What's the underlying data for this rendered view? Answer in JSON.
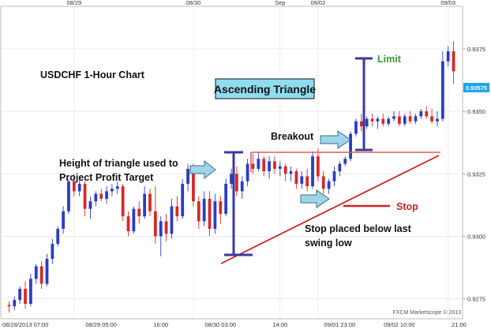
{
  "chart_data": {
    "type": "candlestick",
    "title": "USDCHF 1-Hour Chart",
    "pattern_label": "Ascending Triangle",
    "watermark": "FXCM Marketscope © 2013",
    "current_price_label": "0.93575",
    "y_ticks": [
      "0.9375",
      "0.9350",
      "0.9325",
      "0.9300",
      "0.9275"
    ],
    "y_tick_values": [
      0.9375,
      0.935,
      0.9325,
      0.93,
      0.9275
    ],
    "ylim": [
      0.9267,
      0.9392
    ],
    "top_ticks": [
      {
        "label": "08/29",
        "index": 12
      },
      {
        "label": "08/30",
        "index": 34
      },
      {
        "label": "Sep",
        "index": 50
      },
      {
        "label": "09/02",
        "index": 57
      },
      {
        "label": "09/03",
        "index": 81
      }
    ],
    "bottom_ticks": [
      {
        "label": "08/28/2013 07:00",
        "index": 0
      },
      {
        "label": "08/29 05:00",
        "index": 17
      },
      {
        "label": "16:00",
        "index": 28
      },
      {
        "label": "08/30 03:00",
        "index": 39
      },
      {
        "label": "14:00",
        "index": 50
      },
      {
        "label": "09/01 23:00",
        "index": 61
      },
      {
        "label": "09/02 10:00",
        "index": 72
      },
      {
        "label": "21:00",
        "index": 83
      }
    ],
    "candles": [
      {
        "o": 0.92725,
        "h": 0.9274,
        "l": 0.92695,
        "c": 0.9272
      },
      {
        "o": 0.9272,
        "h": 0.9276,
        "l": 0.92705,
        "c": 0.92745
      },
      {
        "o": 0.92745,
        "h": 0.928,
        "l": 0.9273,
        "c": 0.9279
      },
      {
        "o": 0.9279,
        "h": 0.9282,
        "l": 0.9271,
        "c": 0.9273
      },
      {
        "o": 0.9273,
        "h": 0.9285,
        "l": 0.9272,
        "c": 0.9283
      },
      {
        "o": 0.9283,
        "h": 0.9289,
        "l": 0.9281,
        "c": 0.9288
      },
      {
        "o": 0.9288,
        "h": 0.929,
        "l": 0.9279,
        "c": 0.9281
      },
      {
        "o": 0.9281,
        "h": 0.9293,
        "l": 0.928,
        "c": 0.9291
      },
      {
        "o": 0.9291,
        "h": 0.9299,
        "l": 0.9289,
        "c": 0.9297
      },
      {
        "o": 0.9297,
        "h": 0.9304,
        "l": 0.9296,
        "c": 0.9303
      },
      {
        "o": 0.9303,
        "h": 0.9312,
        "l": 0.9301,
        "c": 0.931
      },
      {
        "o": 0.931,
        "h": 0.9323,
        "l": 0.9309,
        "c": 0.9322
      },
      {
        "o": 0.9322,
        "h": 0.9325,
        "l": 0.9316,
        "c": 0.9318
      },
      {
        "o": 0.9318,
        "h": 0.9323,
        "l": 0.9316,
        "c": 0.9321
      },
      {
        "o": 0.9321,
        "h": 0.9322,
        "l": 0.9308,
        "c": 0.9311
      },
      {
        "o": 0.9311,
        "h": 0.9316,
        "l": 0.9307,
        "c": 0.9314
      },
      {
        "o": 0.9314,
        "h": 0.9318,
        "l": 0.9312,
        "c": 0.9317
      },
      {
        "o": 0.9317,
        "h": 0.9319,
        "l": 0.9314,
        "c": 0.9315
      },
      {
        "o": 0.9315,
        "h": 0.932,
        "l": 0.9313,
        "c": 0.9318
      },
      {
        "o": 0.9318,
        "h": 0.9321,
        "l": 0.9316,
        "c": 0.9319
      },
      {
        "o": 0.9319,
        "h": 0.9322,
        "l": 0.9317,
        "c": 0.932
      },
      {
        "o": 0.932,
        "h": 0.9321,
        "l": 0.9306,
        "c": 0.9308
      },
      {
        "o": 0.9308,
        "h": 0.931,
        "l": 0.93,
        "c": 0.9302
      },
      {
        "o": 0.9302,
        "h": 0.9312,
        "l": 0.9301,
        "c": 0.9311
      },
      {
        "o": 0.9311,
        "h": 0.9314,
        "l": 0.9305,
        "c": 0.9308
      },
      {
        "o": 0.9308,
        "h": 0.932,
        "l": 0.9307,
        "c": 0.9317
      },
      {
        "o": 0.9317,
        "h": 0.9319,
        "l": 0.9308,
        "c": 0.931
      },
      {
        "o": 0.931,
        "h": 0.932,
        "l": 0.9297,
        "c": 0.93
      },
      {
        "o": 0.93,
        "h": 0.9308,
        "l": 0.9292,
        "c": 0.9306
      },
      {
        "o": 0.9306,
        "h": 0.9309,
        "l": 0.9298,
        "c": 0.9301
      },
      {
        "o": 0.9301,
        "h": 0.9315,
        "l": 0.9299,
        "c": 0.9312
      },
      {
        "o": 0.9312,
        "h": 0.9316,
        "l": 0.9306,
        "c": 0.9308
      },
      {
        "o": 0.9308,
        "h": 0.9323,
        "l": 0.9307,
        "c": 0.9321
      },
      {
        "o": 0.9321,
        "h": 0.9329,
        "l": 0.9318,
        "c": 0.9327
      },
      {
        "o": 0.9327,
        "h": 0.9329,
        "l": 0.9312,
        "c": 0.9314
      },
      {
        "o": 0.9314,
        "h": 0.9316,
        "l": 0.9303,
        "c": 0.9306
      },
      {
        "o": 0.9306,
        "h": 0.9318,
        "l": 0.9304,
        "c": 0.9315
      },
      {
        "o": 0.9315,
        "h": 0.9318,
        "l": 0.93,
        "c": 0.9303
      },
      {
        "o": 0.9303,
        "h": 0.9317,
        "l": 0.9301,
        "c": 0.9314
      },
      {
        "o": 0.9314,
        "h": 0.9316,
        "l": 0.9305,
        "c": 0.9309
      },
      {
        "o": 0.9309,
        "h": 0.9323,
        "l": 0.9308,
        "c": 0.9321
      },
      {
        "o": 0.9321,
        "h": 0.9327,
        "l": 0.9319,
        "c": 0.9325
      },
      {
        "o": 0.9325,
        "h": 0.9328,
        "l": 0.9316,
        "c": 0.9318
      },
      {
        "o": 0.9318,
        "h": 0.9324,
        "l": 0.9315,
        "c": 0.9322
      },
      {
        "o": 0.9322,
        "h": 0.9331,
        "l": 0.932,
        "c": 0.9329
      },
      {
        "o": 0.9329,
        "h": 0.9333,
        "l": 0.9325,
        "c": 0.9327
      },
      {
        "o": 0.9327,
        "h": 0.9334,
        "l": 0.9326,
        "c": 0.9331
      },
      {
        "o": 0.9331,
        "h": 0.9332,
        "l": 0.9324,
        "c": 0.9326
      },
      {
        "o": 0.9326,
        "h": 0.9332,
        "l": 0.9323,
        "c": 0.933
      },
      {
        "o": 0.933,
        "h": 0.9332,
        "l": 0.9325,
        "c": 0.9327
      },
      {
        "o": 0.9327,
        "h": 0.933,
        "l": 0.9324,
        "c": 0.9328
      },
      {
        "o": 0.9328,
        "h": 0.9329,
        "l": 0.9322,
        "c": 0.9325
      },
      {
        "o": 0.9325,
        "h": 0.9328,
        "l": 0.9322,
        "c": 0.9326
      },
      {
        "o": 0.9326,
        "h": 0.9327,
        "l": 0.9319,
        "c": 0.9321
      },
      {
        "o": 0.9321,
        "h": 0.9326,
        "l": 0.9319,
        "c": 0.9324
      },
      {
        "o": 0.9324,
        "h": 0.9327,
        "l": 0.9318,
        "c": 0.932
      },
      {
        "o": 0.932,
        "h": 0.9334,
        "l": 0.9319,
        "c": 0.9332
      },
      {
        "o": 0.9332,
        "h": 0.9335,
        "l": 0.9322,
        "c": 0.9324
      },
      {
        "o": 0.9324,
        "h": 0.9326,
        "l": 0.9317,
        "c": 0.9319
      },
      {
        "o": 0.9319,
        "h": 0.9323,
        "l": 0.9317,
        "c": 0.9322
      },
      {
        "o": 0.9322,
        "h": 0.9328,
        "l": 0.932,
        "c": 0.9326
      },
      {
        "o": 0.9326,
        "h": 0.933,
        "l": 0.9324,
        "c": 0.9329
      },
      {
        "o": 0.9329,
        "h": 0.9332,
        "l": 0.9328,
        "c": 0.9331
      },
      {
        "o": 0.9331,
        "h": 0.9342,
        "l": 0.933,
        "c": 0.9341
      },
      {
        "o": 0.9341,
        "h": 0.9347,
        "l": 0.934,
        "c": 0.9346
      },
      {
        "o": 0.9346,
        "h": 0.9349,
        "l": 0.9342,
        "c": 0.9344
      },
      {
        "o": 0.9344,
        "h": 0.9348,
        "l": 0.9343,
        "c": 0.9347
      },
      {
        "o": 0.9347,
        "h": 0.9349,
        "l": 0.9344,
        "c": 0.9346
      },
      {
        "o": 0.9346,
        "h": 0.9348,
        "l": 0.9343,
        "c": 0.9347
      },
      {
        "o": 0.9347,
        "h": 0.9349,
        "l": 0.9344,
        "c": 0.9345
      },
      {
        "o": 0.9345,
        "h": 0.9348,
        "l": 0.9344,
        "c": 0.9347
      },
      {
        "o": 0.9347,
        "h": 0.935,
        "l": 0.9346,
        "c": 0.9348
      },
      {
        "o": 0.9348,
        "h": 0.935,
        "l": 0.9344,
        "c": 0.9345
      },
      {
        "o": 0.9345,
        "h": 0.9349,
        "l": 0.9344,
        "c": 0.9348
      },
      {
        "o": 0.9348,
        "h": 0.935,
        "l": 0.9345,
        "c": 0.9346
      },
      {
        "o": 0.9346,
        "h": 0.9349,
        "l": 0.9345,
        "c": 0.9348
      },
      {
        "o": 0.9348,
        "h": 0.9351,
        "l": 0.9347,
        "c": 0.935
      },
      {
        "o": 0.935,
        "h": 0.9352,
        "l": 0.9347,
        "c": 0.9348
      },
      {
        "o": 0.9348,
        "h": 0.9351,
        "l": 0.9345,
        "c": 0.9346
      },
      {
        "o": 0.9346,
        "h": 0.935,
        "l": 0.9344,
        "c": 0.9347
      },
      {
        "o": 0.9347,
        "h": 0.9374,
        "l": 0.9346,
        "c": 0.937
      },
      {
        "o": 0.937,
        "h": 0.9376,
        "l": 0.9368,
        "c": 0.9374
      },
      {
        "o": 0.9374,
        "h": 0.9378,
        "l": 0.9361,
        "c": 0.9366
      }
    ]
  },
  "annotations": {
    "chart_title": "USDCHF 1-Hour Chart",
    "pattern_label": "Ascending Triangle",
    "limit": "Limit",
    "breakout": "Breakout",
    "stop": "Stop",
    "height_line1": "Height of triangle used to",
    "height_line2": "Project Profit Target",
    "stop_note_line1": "Stop placed below last",
    "stop_note_line2": "swing low",
    "watermark": "FXCM Marketscope © 2013"
  },
  "colors": {
    "bull": "#2b3cc4",
    "bear": "#d42a2a",
    "resistance": "#e05a5a",
    "support": "#cc2222",
    "measure": "#3a3aa0",
    "arrow_fill": "#9dd5ea",
    "price_tag": "#22a6e8",
    "title_box": "#8fdcf0",
    "limit_text": "#3a9a3a",
    "stop_text": "#cc2222",
    "grid": "#e8e8e8"
  }
}
